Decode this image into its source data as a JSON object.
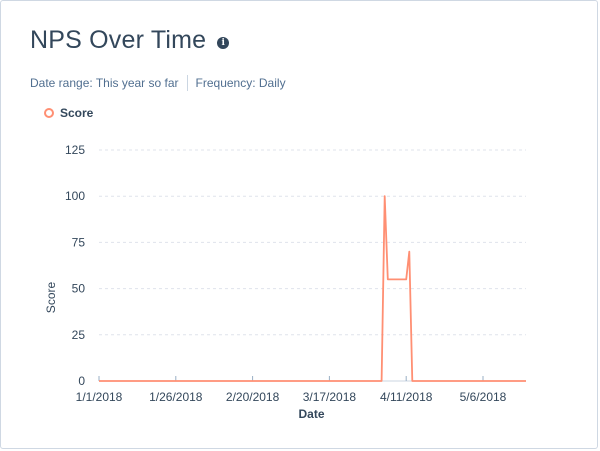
{
  "header": {
    "title": "NPS Over Time",
    "info_icon": "info-icon",
    "date_range": "Date range: This year so far",
    "frequency": "Frequency: Daily"
  },
  "legend": {
    "label": "Score",
    "color": "#ff8f73"
  },
  "chart_data": {
    "type": "line",
    "title": "NPS Over Time",
    "xlabel": "Date",
    "ylabel": "Score",
    "ylim": [
      0,
      125
    ],
    "yticks": [
      0,
      25,
      50,
      75,
      100,
      125
    ],
    "xlim_days": [
      0,
      139
    ],
    "xticks": [
      {
        "day": 0,
        "label": "1/1/2018"
      },
      {
        "day": 25,
        "label": "1/26/2018"
      },
      {
        "day": 50,
        "label": "2/20/2018"
      },
      {
        "day": 75,
        "label": "3/17/2018"
      },
      {
        "day": 100,
        "label": "4/11/2018"
      },
      {
        "day": 125,
        "label": "5/6/2018"
      }
    ],
    "series": [
      {
        "name": "Score",
        "color": "#ff8f73",
        "points": [
          {
            "day": 0,
            "value": 0
          },
          {
            "day": 92,
            "value": 0
          },
          {
            "day": 93,
            "value": 100
          },
          {
            "day": 94,
            "value": 55
          },
          {
            "day": 100,
            "value": 55
          },
          {
            "day": 101,
            "value": 70
          },
          {
            "day": 102,
            "value": 0
          },
          {
            "day": 139,
            "value": 0
          }
        ]
      }
    ],
    "grid": true
  }
}
